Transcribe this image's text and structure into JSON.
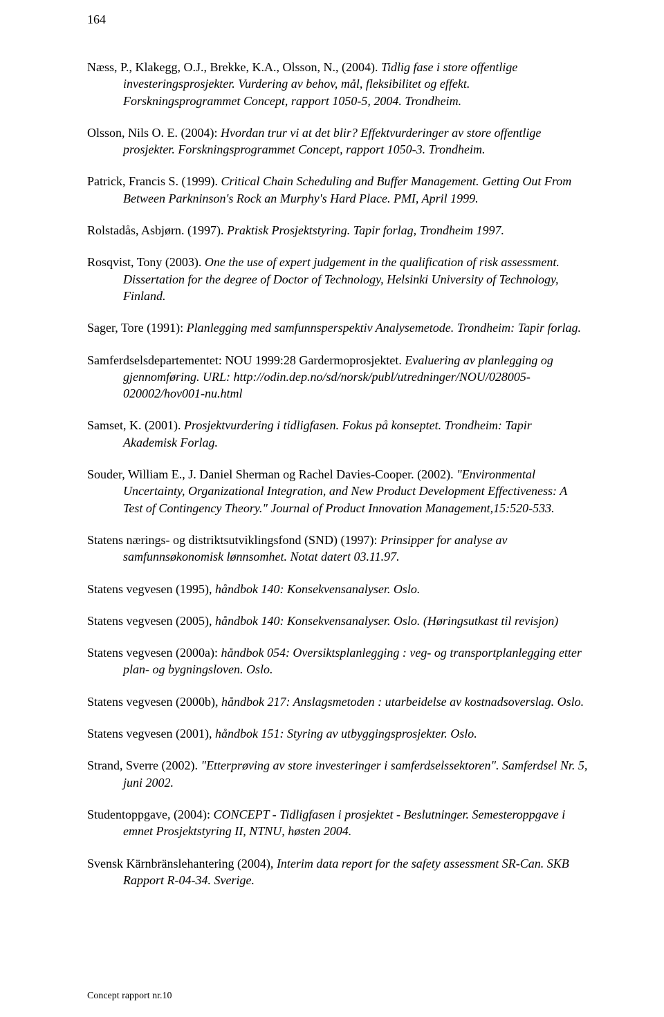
{
  "page_number": "164",
  "footer": "Concept rapport nr.10",
  "entries": [
    {
      "plain1": "Næss, P., Klakegg, O.J., Brekke, K.A., Olsson, N., (2004). ",
      "italic1": "Tidlig fase i store offentlige investeringsprosjekter. Vurdering av behov, mål, fleksibilitet og effekt. Forskningsprogrammet Concept, rapport 1050-5, 2004. Trondheim."
    },
    {
      "plain1": "Olsson, Nils O. E. (2004): ",
      "italic1": "Hvordan trur vi at det blir? Effektvurderinger av store offentlige prosjekter. Forskningsprogrammet Concept, rapport 1050-3. Trondheim."
    },
    {
      "plain1": "Patrick, Francis S. (1999). ",
      "italic1": "Critical Chain Scheduling and Buffer Management. Getting Out From Between Parkninson's Rock an Murphy's Hard Place. PMI, April 1999."
    },
    {
      "plain1": "Rolstadås, Asbjørn. (1997). ",
      "italic1": "Praktisk Prosjektstyring. Tapir forlag, Trondheim 1997."
    },
    {
      "plain1": "Rosqvist, Tony (2003). ",
      "italic1": "One the use of expert judgement in the qualification of risk assessment. Dissertation for the degree of Doctor of Technology, Helsinki University of Technology, Finland."
    },
    {
      "plain1": "Sager, Tore (1991): ",
      "italic1": "Planlegging med samfunnsperspektiv Analysemetode. Trondheim: Tapir forlag."
    },
    {
      "plain1": "Samferdselsdepartementet: NOU 1999:28 Gardermoprosjektet. ",
      "italic1": "Evaluering av planlegging og gjennomføring. URL: http://odin.dep.no/sd/norsk/publ/utredninger/NOU/028005-020002/hov001-nu.html"
    },
    {
      "plain1": "Samset, K. (2001). ",
      "italic1": "Prosjektvurdering i tidligfasen. Fokus på konseptet. Trondheim: Tapir Akademisk Forlag."
    },
    {
      "plain1": "Souder, William E., J. Daniel Sherman og Rachel Davies-Cooper. (2002). ",
      "italic1": "\"Environmental Uncertainty, Organizational Integration, and New Product Development Effectiveness: A Test of Contingency Theory.\" Journal of Product Innovation Management,15:520-533."
    },
    {
      "plain1": "Statens nærings- og distriktsutviklingsfond (SND) (1997): ",
      "italic1": "Prinsipper for analyse av samfunnsøkonomisk lønnsomhet. Notat datert 03.11.97."
    },
    {
      "plain1": "Statens vegvesen (1995), ",
      "italic1": "håndbok 140: Konsekvensanalyser. Oslo."
    },
    {
      "plain1": "Statens vegvesen (2005), ",
      "italic1": "håndbok 140: Konsekvensanalyser. Oslo. (Høringsutkast til revisjon)"
    },
    {
      "plain1": "Statens vegvesen (2000a): ",
      "italic1": "håndbok 054: Oversiktsplanlegging : veg- og transportplanlegging etter plan- og bygningsloven. Oslo."
    },
    {
      "plain1": "Statens vegvesen (2000b), ",
      "italic1": "håndbok 217: Anslagsmetoden : utarbeidelse av kostnadsoverslag. Oslo."
    },
    {
      "plain1": "Statens vegvesen (2001), ",
      "italic1": "håndbok 151: Styring av utbyggingsprosjekter. Oslo."
    },
    {
      "plain1": "Strand, Sverre (2002). ",
      "italic1": "\"Etterprøving av store investeringer i samferdselssektoren\". Samferdsel Nr. 5, juni 2002."
    },
    {
      "plain1": "Studentoppgave, (2004): ",
      "italic1": "CONCEPT - Tidligfasen i prosjektet - Beslutninger. Semesteroppgave i emnet Prosjektstyring II, NTNU, høsten 2004."
    },
    {
      "plain1": "Svensk Kärnbränslehantering (2004), ",
      "italic1": "Interim data report for the safety assessment SR-Can. SKB Rapport R-04-34. Sverige."
    }
  ]
}
